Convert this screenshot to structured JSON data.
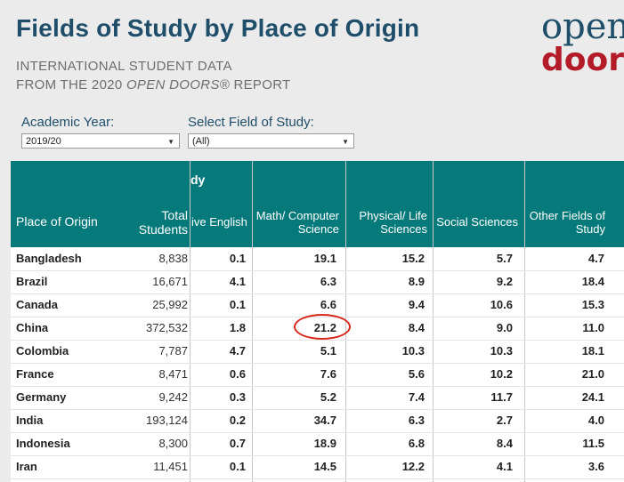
{
  "header": {
    "title": "Fields of Study by Place of Origin",
    "subtitle_line1": "INTERNATIONAL STUDENT DATA",
    "subtitle_line2_prefix": "FROM THE 2020 ",
    "subtitle_line2_italic": "OPEN DOORS®",
    "subtitle_line2_suffix": " REPORT",
    "logo_top": "open",
    "logo_bottom": "doors"
  },
  "filters": {
    "year_label": "Academic Year:",
    "year_value": "2019/20",
    "field_label": "Select Field of Study:",
    "field_value": "(All)"
  },
  "table": {
    "banner_fragment": "dy",
    "columns": [
      "Place of Origin",
      "Total Students",
      "ive English",
      "Math/ Computer Science",
      "Physical/ Life Sciences",
      "Social Sciences",
      "Other Fields of Study"
    ],
    "rows": [
      {
        "country": "Bangladesh",
        "total": "8,838",
        "english": "0.1",
        "math": "19.1",
        "physical": "15.2",
        "social": "5.7",
        "other": "4.7"
      },
      {
        "country": "Brazil",
        "total": "16,671",
        "english": "4.1",
        "math": "6.3",
        "physical": "8.9",
        "social": "9.2",
        "other": "18.4"
      },
      {
        "country": "Canada",
        "total": "25,992",
        "english": "0.1",
        "math": "6.6",
        "physical": "9.4",
        "social": "10.6",
        "other": "15.3"
      },
      {
        "country": "China",
        "total": "372,532",
        "english": "1.8",
        "math": "21.2",
        "physical": "8.4",
        "social": "9.0",
        "other": "11.0"
      },
      {
        "country": "Colombia",
        "total": "7,787",
        "english": "4.7",
        "math": "5.1",
        "physical": "10.3",
        "social": "10.3",
        "other": "18.1"
      },
      {
        "country": "France",
        "total": "8,471",
        "english": "0.6",
        "math": "7.6",
        "physical": "5.6",
        "social": "10.2",
        "other": "21.0"
      },
      {
        "country": "Germany",
        "total": "9,242",
        "english": "0.3",
        "math": "5.2",
        "physical": "7.4",
        "social": "11.7",
        "other": "24.1"
      },
      {
        "country": "India",
        "total": "193,124",
        "english": "0.2",
        "math": "34.7",
        "physical": "6.3",
        "social": "2.7",
        "other": "4.0"
      },
      {
        "country": "Indonesia",
        "total": "8,300",
        "english": "0.7",
        "math": "18.9",
        "physical": "6.8",
        "social": "8.4",
        "other": "11.5"
      },
      {
        "country": "Iran",
        "total": "11,451",
        "english": "0.1",
        "math": "14.5",
        "physical": "12.2",
        "social": "4.1",
        "other": "3.6"
      }
    ]
  },
  "annotation": {
    "highlighted_cell": "China / Math/ Computer Science",
    "color": "#d9261c"
  },
  "colors": {
    "title": "#1f4e6a",
    "header_bg": "#067a7b",
    "logo_red": "#b31b28"
  }
}
